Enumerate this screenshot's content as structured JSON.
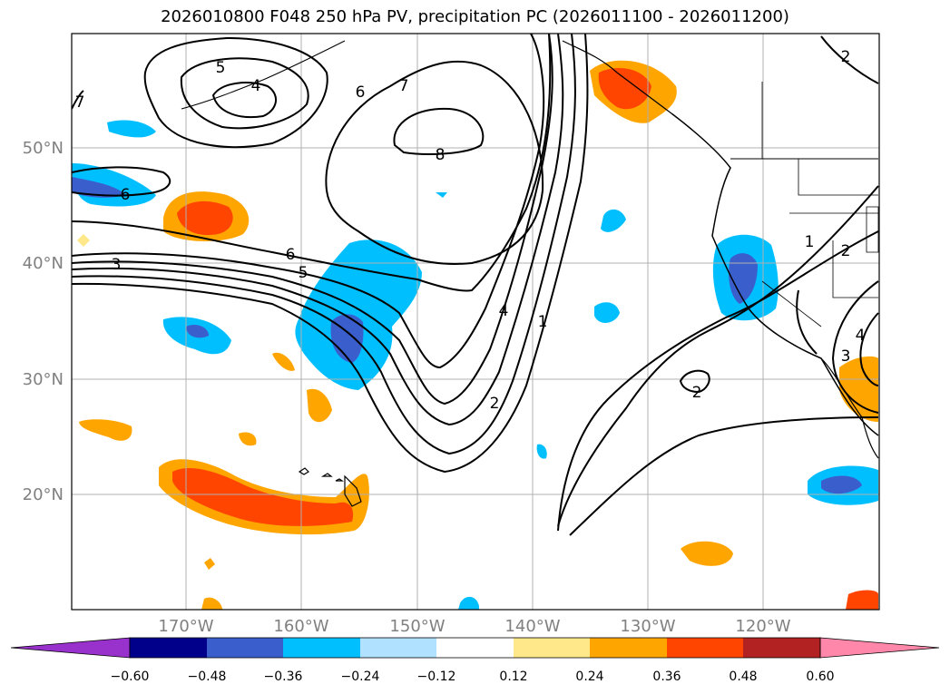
{
  "title": "2026010800 F048 250 hPa PV, precipitation PC (2026011100 - 2026011200)",
  "lat_labels": [
    "50°N",
    "40°N",
    "30°N",
    "20°N"
  ],
  "lon_labels": [
    "170°W",
    "160°W",
    "150°W",
    "140°W",
    "130°W",
    "120°W"
  ],
  "colorbar": {
    "ticks": [
      "−0.60",
      "−0.48",
      "−0.36",
      "−0.24",
      "−0.12",
      "0.12",
      "0.24",
      "0.36",
      "0.48",
      "0.60"
    ],
    "colors": [
      "#9932cc",
      "#00008b",
      "#3a5fcd",
      "#00bfff",
      "#b0e2ff",
      "#ffffff",
      "#ffe88a",
      "#ffa500",
      "#ff4500",
      "#b22222",
      "#ff88aa"
    ]
  },
  "contour_labels": [
    "5",
    "4",
    "6",
    "7",
    "8",
    "6",
    "3",
    "6",
    "5",
    "4",
    "1",
    "2",
    "2",
    "1",
    "2",
    "2",
    "4",
    "3",
    "7"
  ],
  "colors": {
    "coast": "#000000",
    "grid": "#b0b0b0",
    "pv_contour": "#000000"
  }
}
